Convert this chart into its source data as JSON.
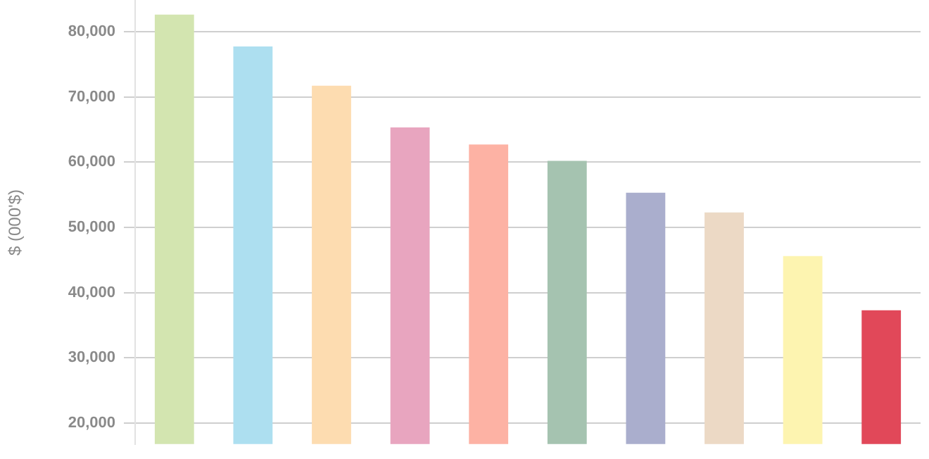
{
  "chart_data": {
    "type": "bar",
    "ylabel": "$ (000'$)",
    "categories": [
      null,
      null,
      null,
      null,
      null,
      null,
      null,
      null,
      null,
      null
    ],
    "values": [
      82600,
      77700,
      71700,
      65300,
      62700,
      60200,
      55300,
      52300,
      45600,
      37300
    ],
    "colors": [
      "#d3e5b0",
      "#addff0",
      "#fddcb0",
      "#e8a5bf",
      "#fdb2a4",
      "#a5c3b0",
      "#aaaecd",
      "#ecd9c5",
      "#fdf4b0",
      "#e14859"
    ],
    "ylim": [
      16800,
      84700
    ],
    "yticks": [
      {
        "value": 20000,
        "label": "20,000"
      },
      {
        "value": 30000,
        "label": "30,000"
      },
      {
        "value": 40000,
        "label": "40,000"
      },
      {
        "value": 50000,
        "label": "50,000"
      },
      {
        "value": 60000,
        "label": "60,000"
      },
      {
        "value": 70000,
        "label": "70,000"
      },
      {
        "value": 80000,
        "label": "80,000"
      }
    ],
    "grid": "y",
    "legend": false
  }
}
